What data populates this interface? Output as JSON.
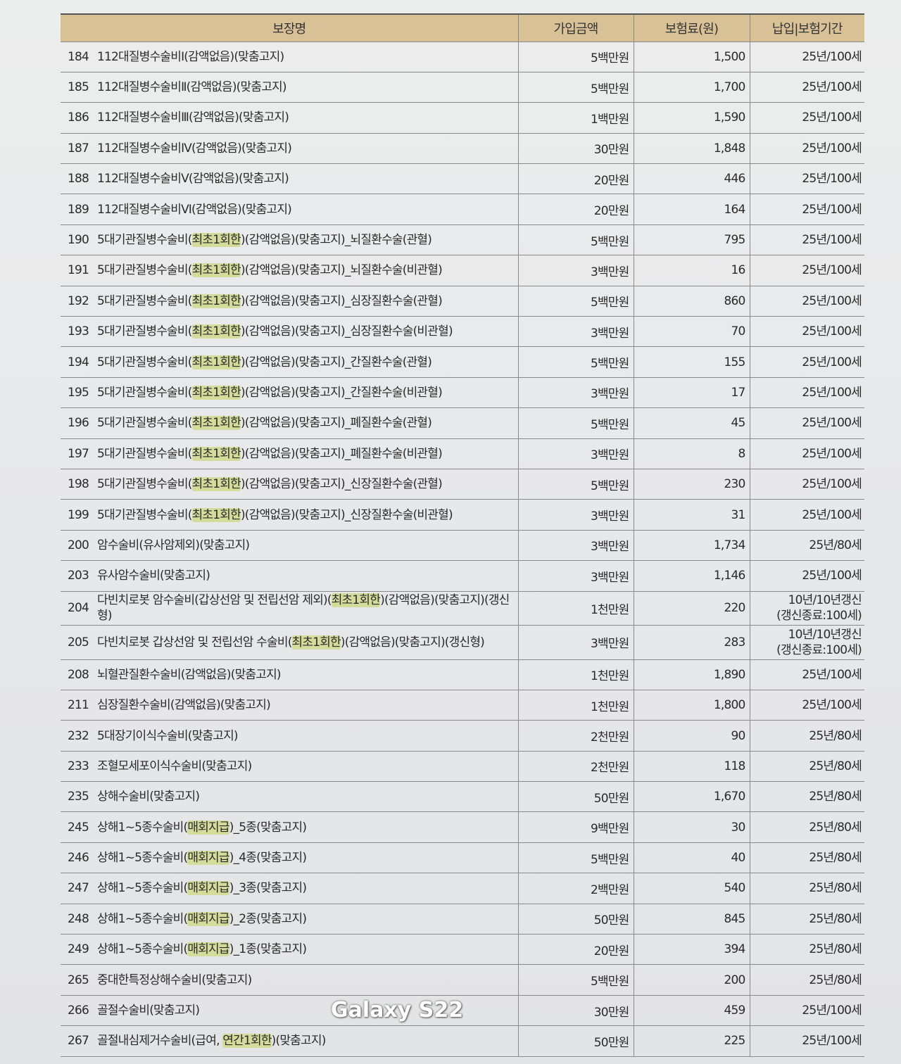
{
  "header": {
    "name": "보장명",
    "amount": "가입금액",
    "premium": "보험료(원)",
    "period": "납입|보험기간"
  },
  "colors": {
    "header_bg": "#d9c197",
    "highlight": "#d3dc9a"
  },
  "rows": [
    {
      "no": "184",
      "pre": "112대질병수술비Ⅰ(감액없음)(맞춤고지)",
      "hl": "",
      "post": "",
      "amount": "5백만원",
      "premium": "1,500",
      "period": "25년/100세"
    },
    {
      "no": "185",
      "pre": "112대질병수술비Ⅱ(감액없음)(맞춤고지)",
      "hl": "",
      "post": "",
      "amount": "5백만원",
      "premium": "1,700",
      "period": "25년/100세"
    },
    {
      "no": "186",
      "pre": "112대질병수술비Ⅲ(감액없음)(맞춤고지)",
      "hl": "",
      "post": "",
      "amount": "1백만원",
      "premium": "1,590",
      "period": "25년/100세"
    },
    {
      "no": "187",
      "pre": "112대질병수술비Ⅳ(감액없음)(맞춤고지)",
      "hl": "",
      "post": "",
      "amount": "30만원",
      "premium": "1,848",
      "period": "25년/100세"
    },
    {
      "no": "188",
      "pre": "112대질병수술비Ⅴ(감액없음)(맞춤고지)",
      "hl": "",
      "post": "",
      "amount": "20만원",
      "premium": "446",
      "period": "25년/100세"
    },
    {
      "no": "189",
      "pre": "112대질병수술비Ⅵ(감액없음)(맞춤고지)",
      "hl": "",
      "post": "",
      "amount": "20만원",
      "premium": "164",
      "period": "25년/100세"
    },
    {
      "no": "190",
      "pre": "5대기관질병수술비(",
      "hl": "최초1회한",
      "post": ")(감액없음)(맞춤고지)_뇌질환수술(관혈)",
      "amount": "5백만원",
      "premium": "795",
      "period": "25년/100세"
    },
    {
      "no": "191",
      "pre": "5대기관질병수술비(",
      "hl": "최초1회한",
      "post": ")(감액없음)(맞춤고지)_뇌질환수술(비관혈)",
      "amount": "3백만원",
      "premium": "16",
      "period": "25년/100세"
    },
    {
      "no": "192",
      "pre": "5대기관질병수술비(",
      "hl": "최초1회한",
      "post": ")(감액없음)(맞춤고지)_심장질환수술(관혈)",
      "amount": "5백만원",
      "premium": "860",
      "period": "25년/100세"
    },
    {
      "no": "193",
      "pre": "5대기관질병수술비(",
      "hl": "최초1회한",
      "post": ")(감액없음)(맞춤고지)_심장질환수술(비관혈)",
      "amount": "3백만원",
      "premium": "70",
      "period": "25년/100세"
    },
    {
      "no": "194",
      "pre": "5대기관질병수술비(",
      "hl": "최초1회한",
      "post": ")(감액없음)(맞춤고지)_간질환수술(관혈)",
      "amount": "5백만원",
      "premium": "155",
      "period": "25년/100세"
    },
    {
      "no": "195",
      "pre": "5대기관질병수술비(",
      "hl": "최초1회한",
      "post": ")(감액없음)(맞춤고지)_간질환수술(비관혈)",
      "amount": "3백만원",
      "premium": "17",
      "period": "25년/100세"
    },
    {
      "no": "196",
      "pre": "5대기관질병수술비(",
      "hl": "최초1회한",
      "post": ")(감액없음)(맞춤고지)_폐질환수술(관혈)",
      "amount": "5백만원",
      "premium": "45",
      "period": "25년/100세"
    },
    {
      "no": "197",
      "pre": "5대기관질병수술비(",
      "hl": "최초1회한",
      "post": ")(감액없음)(맞춤고지)_폐질환수술(비관혈)",
      "amount": "3백만원",
      "premium": "8",
      "period": "25년/100세"
    },
    {
      "no": "198",
      "pre": "5대기관질병수술비(",
      "hl": "최초1회한",
      "post": ")(감액없음)(맞춤고지)_신장질환수술(관혈)",
      "amount": "5백만원",
      "premium": "230",
      "period": "25년/100세"
    },
    {
      "no": "199",
      "pre": "5대기관질병수술비(",
      "hl": "최초1회한",
      "post": ")(감액없음)(맞춤고지)_신장질환수술(비관혈)",
      "amount": "3백만원",
      "premium": "31",
      "period": "25년/100세"
    },
    {
      "no": "200",
      "pre": "암수술비(유사암제외)(맞춤고지)",
      "hl": "",
      "post": "",
      "amount": "3백만원",
      "premium": "1,734",
      "period": "25년/80세"
    },
    {
      "no": "203",
      "pre": "유사암수술비(맞춤고지)",
      "hl": "",
      "post": "",
      "amount": "3백만원",
      "premium": "1,146",
      "period": "25년/100세"
    },
    {
      "no": "204",
      "pre": "다빈치로봇 암수술비(갑상선암 및 전립선암 제외)(",
      "hl": "최초1회한",
      "post": ")(감액없음)(맞춤고지)(갱신형)",
      "amount": "1천만원",
      "premium": "220",
      "period": "10년/10년갱신",
      "period2": "(갱신종료:100세)"
    },
    {
      "no": "205",
      "pre": "다빈치로봇 갑상선암 및 전립선암 수술비(",
      "hl": "최초1회한",
      "post": ")(감액없음)(맞춤고지)(갱신형)",
      "amount": "3백만원",
      "premium": "283",
      "period": "10년/10년갱신",
      "period2": "(갱신종료:100세)"
    },
    {
      "no": "208",
      "pre": "뇌혈관질환수술비(감액없음)(맞춤고지)",
      "hl": "",
      "post": "",
      "amount": "1천만원",
      "premium": "1,890",
      "period": "25년/100세"
    },
    {
      "no": "211",
      "pre": "심장질환수술비(감액없음)(맞춤고지)",
      "hl": "",
      "post": "",
      "amount": "1천만원",
      "premium": "1,800",
      "period": "25년/100세"
    },
    {
      "no": "232",
      "pre": "5대장기이식수술비(맞춤고지)",
      "hl": "",
      "post": "",
      "amount": "2천만원",
      "premium": "90",
      "period": "25년/80세"
    },
    {
      "no": "233",
      "pre": "조혈모세포이식수술비(맞춤고지)",
      "hl": "",
      "post": "",
      "amount": "2천만원",
      "premium": "118",
      "period": "25년/80세"
    },
    {
      "no": "235",
      "pre": "상해수술비(맞춤고지)",
      "hl": "",
      "post": "",
      "amount": "50만원",
      "premium": "1,670",
      "period": "25년/80세"
    },
    {
      "no": "245",
      "pre": "상해1~5종수술비(",
      "hl": "매회지급",
      "post": ")_5종(맞춤고지)",
      "amount": "9백만원",
      "premium": "30",
      "period": "25년/80세"
    },
    {
      "no": "246",
      "pre": "상해1~5종수술비(",
      "hl": "매회지급",
      "post": ")_4종(맞춤고지)",
      "amount": "5백만원",
      "premium": "40",
      "period": "25년/80세"
    },
    {
      "no": "247",
      "pre": "상해1~5종수술비(",
      "hl": "매회지급",
      "post": ")_3종(맞춤고지)",
      "amount": "2백만원",
      "premium": "540",
      "period": "25년/80세"
    },
    {
      "no": "248",
      "pre": "상해1~5종수술비(",
      "hl": "매회지급",
      "post": ")_2종(맞춤고지)",
      "amount": "50만원",
      "premium": "845",
      "period": "25년/80세"
    },
    {
      "no": "249",
      "pre": "상해1~5종수술비(",
      "hl": "매회지급",
      "post": ")_1종(맞춤고지)",
      "amount": "20만원",
      "premium": "394",
      "period": "25년/80세"
    },
    {
      "no": "265",
      "pre": "중대한특정상해수술비(맞춤고지)",
      "hl": "",
      "post": "",
      "amount": "5백만원",
      "premium": "200",
      "period": "25년/80세"
    },
    {
      "no": "266",
      "pre": "골절수술비(맞춤고지)",
      "hl": "",
      "post": "",
      "amount": "30만원",
      "premium": "459",
      "period": "25년/100세"
    },
    {
      "no": "267",
      "pre": "골절내심제거수술비(급여, ",
      "hl": "연간1회한",
      "post": ")(맞춤고지)",
      "amount": "50만원",
      "premium": "225",
      "period": "25년/100세"
    }
  ],
  "watermark": "Galaxy S22"
}
